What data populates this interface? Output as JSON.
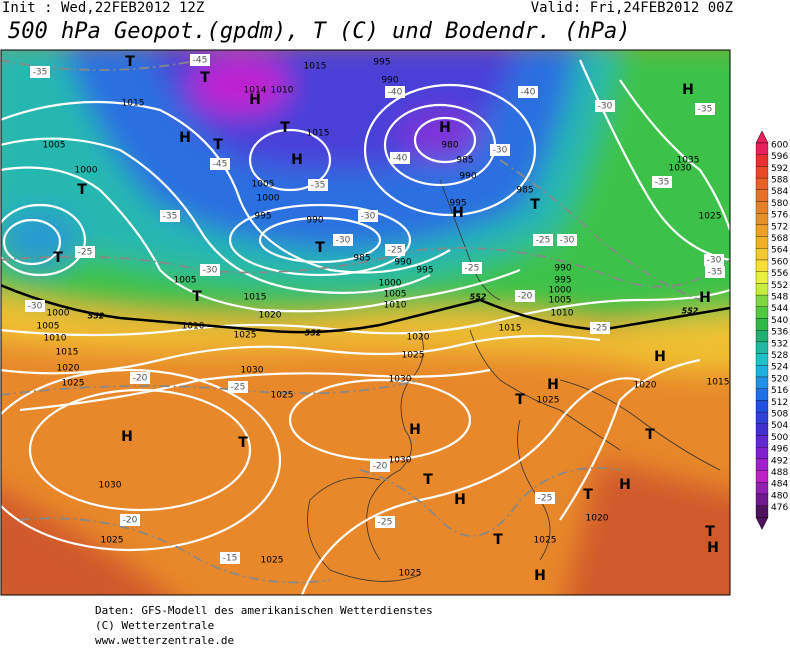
{
  "header": {
    "init": "Init : Wed,22FEB2012 12Z",
    "valid": "Valid: Fri,24FEB2012 00Z",
    "title": "500 hPa Geopot.(gpdm), T (C) und Bodendr. (hPa)"
  },
  "map": {
    "centers": [
      "T",
      "T",
      "H",
      "T",
      "H",
      "T",
      "H",
      "T",
      "T",
      "T",
      "T",
      "H",
      "H",
      "T",
      "H",
      "H",
      "H",
      "T",
      "H",
      "H",
      "T",
      "T",
      "T",
      "H",
      "T",
      "H",
      "T",
      "H",
      "T",
      "H",
      "H"
    ],
    "isobars": [
      "1015",
      "995",
      "990",
      "1010",
      "1014",
      "1015",
      "1005",
      "1000",
      "1015",
      "980",
      "985",
      "990",
      "985",
      "995",
      "1005",
      "1000",
      "995",
      "990",
      "985",
      "990",
      "995",
      "1000",
      "1005",
      "1010",
      "1015",
      "1020",
      "1025",
      "1005",
      "1010",
      "1000",
      "1005",
      "1010",
      "1015",
      "1020",
      "1025",
      "1030",
      "1025",
      "1030",
      "1025",
      "1020",
      "1015",
      "1030",
      "1025",
      "1030",
      "1025",
      "1025",
      "1025",
      "1020",
      "1025",
      "1020",
      "1030",
      "1035",
      "1025",
      "1010",
      "1005",
      "1000",
      "995",
      "990",
      "1015"
    ],
    "isotherms": [
      "-45",
      "-40",
      "-40",
      "-30",
      "-35",
      "-30",
      "-40",
      "-35",
      "-45",
      "-35",
      "-30",
      "-30",
      "-25",
      "-25",
      "-25",
      "-30",
      "-35",
      "-30",
      "-35",
      "-30",
      "-25",
      "-30",
      "-35",
      "-25",
      "-20",
      "-25",
      "-20",
      "-20",
      "-15",
      "-25",
      "-25",
      "-20"
    ],
    "contour_552": [
      "552",
      "552",
      "552",
      "552"
    ]
  },
  "colorbar": {
    "levels": [
      600,
      596,
      592,
      588,
      584,
      580,
      576,
      572,
      568,
      564,
      560,
      556,
      552,
      548,
      544,
      540,
      536,
      532,
      528,
      524,
      520,
      516,
      512,
      508,
      504,
      500,
      496,
      492,
      488,
      484,
      480,
      476
    ]
  },
  "footer": [
    "Daten: GFS-Modell des amerikanischen Wetterdienstes",
    "(C) Wetterzentrale",
    "www.wetterzentrale.de"
  ]
}
